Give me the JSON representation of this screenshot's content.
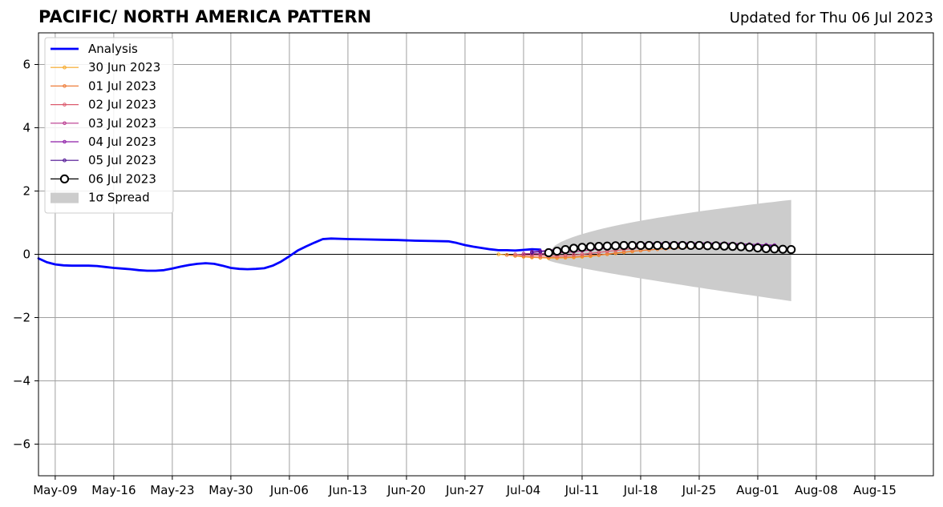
{
  "title": "PACIFIC/ NORTH AMERICA PATTERN",
  "subtitle": "Updated for Thu 06 Jul 2023",
  "chart_data": {
    "type": "line",
    "title": "PACIFIC/ NORTH AMERICA PATTERN",
    "subtitle": "Updated for Thu 06 Jul 2023",
    "xlabel": "",
    "ylabel": "",
    "xlim": [
      "2023-05-07",
      "2023-08-22"
    ],
    "ylim": [
      -7,
      7
    ],
    "x_tick_labels": [
      "May-09",
      "May-16",
      "May-23",
      "May-30",
      "Jun-06",
      "Jun-13",
      "Jun-20",
      "Jun-27",
      "Jul-04",
      "Jul-11",
      "Jul-18",
      "Jul-25",
      "Aug-01",
      "Aug-08",
      "Aug-15"
    ],
    "x_tick_dates": [
      "2023-05-09",
      "2023-05-16",
      "2023-05-23",
      "2023-05-30",
      "2023-06-06",
      "2023-06-13",
      "2023-06-20",
      "2023-06-27",
      "2023-07-04",
      "2023-07-11",
      "2023-07-18",
      "2023-07-25",
      "2023-08-01",
      "2023-08-08",
      "2023-08-15"
    ],
    "y_ticks": [
      6,
      4,
      2,
      0,
      -2,
      -4,
      -6
    ],
    "y_tick_labels": [
      "6",
      "4",
      "2",
      "0",
      "−2",
      "−4",
      "−6"
    ],
    "grid": true,
    "legend_position": "top-left",
    "zero_line": 0,
    "series": [
      {
        "name": "Analysis",
        "color": "#0000ff",
        "style": "line",
        "points": [
          [
            "2023-05-07",
            -0.13
          ],
          [
            "2023-05-08",
            -0.25
          ],
          [
            "2023-05-09",
            -0.32
          ],
          [
            "2023-05-10",
            -0.35
          ],
          [
            "2023-05-11",
            -0.36
          ],
          [
            "2023-05-12",
            -0.36
          ],
          [
            "2023-05-13",
            -0.36
          ],
          [
            "2023-05-14",
            -0.37
          ],
          [
            "2023-05-15",
            -0.4
          ],
          [
            "2023-05-16",
            -0.43
          ],
          [
            "2023-05-17",
            -0.45
          ],
          [
            "2023-05-18",
            -0.47
          ],
          [
            "2023-05-19",
            -0.5
          ],
          [
            "2023-05-20",
            -0.52
          ],
          [
            "2023-05-21",
            -0.52
          ],
          [
            "2023-05-22",
            -0.5
          ],
          [
            "2023-05-23",
            -0.45
          ],
          [
            "2023-05-24",
            -0.39
          ],
          [
            "2023-05-25",
            -0.34
          ],
          [
            "2023-05-26",
            -0.3
          ],
          [
            "2023-05-27",
            -0.28
          ],
          [
            "2023-05-28",
            -0.3
          ],
          [
            "2023-05-29",
            -0.36
          ],
          [
            "2023-05-30",
            -0.43
          ],
          [
            "2023-05-31",
            -0.46
          ],
          [
            "2023-06-01",
            -0.47
          ],
          [
            "2023-06-02",
            -0.46
          ],
          [
            "2023-06-03",
            -0.44
          ],
          [
            "2023-06-04",
            -0.36
          ],
          [
            "2023-06-05",
            -0.23
          ],
          [
            "2023-06-06",
            -0.06
          ],
          [
            "2023-06-07",
            0.12
          ],
          [
            "2023-06-08",
            0.25
          ],
          [
            "2023-06-09",
            0.37
          ],
          [
            "2023-06-10",
            0.48
          ],
          [
            "2023-06-11",
            0.5
          ],
          [
            "2023-06-13",
            0.48
          ],
          [
            "2023-06-15",
            0.47
          ],
          [
            "2023-06-17",
            0.46
          ],
          [
            "2023-06-19",
            0.45
          ],
          [
            "2023-06-21",
            0.43
          ],
          [
            "2023-06-23",
            0.42
          ],
          [
            "2023-06-25",
            0.41
          ],
          [
            "2023-06-26",
            0.36
          ],
          [
            "2023-06-27",
            0.29
          ],
          [
            "2023-06-28",
            0.24
          ],
          [
            "2023-06-29",
            0.2
          ],
          [
            "2023-06-30",
            0.16
          ],
          [
            "2023-07-01",
            0.13
          ],
          [
            "2023-07-02",
            0.13
          ],
          [
            "2023-07-03",
            0.12
          ],
          [
            "2023-07-04",
            0.14
          ],
          [
            "2023-07-05",
            0.16
          ],
          [
            "2023-07-06",
            0.15
          ]
        ]
      },
      {
        "name": "30 Jun 2023",
        "color": "#f5a623",
        "style": "small-marker",
        "start": "2023-07-01",
        "values": [
          0.0,
          -0.02,
          -0.05,
          -0.08,
          -0.1,
          -0.11,
          -0.12,
          -0.12,
          -0.11,
          -0.1,
          -0.08,
          -0.06,
          -0.03,
          0.0,
          0.03,
          0.06,
          0.09,
          0.12,
          0.14,
          0.16,
          0.18,
          0.2,
          0.21,
          0.22,
          0.22,
          0.22,
          0.22,
          0.21,
          0.2,
          0.19
        ]
      },
      {
        "name": "01 Jul 2023",
        "color": "#ee7d3a",
        "style": "small-marker",
        "start": "2023-07-02",
        "values": [
          -0.02,
          -0.04,
          -0.06,
          -0.08,
          -0.1,
          -0.1,
          -0.1,
          -0.09,
          -0.08,
          -0.06,
          -0.04,
          -0.02,
          0.01,
          0.04,
          0.07,
          0.1,
          0.12,
          0.14,
          0.16,
          0.18,
          0.19,
          0.2,
          0.21,
          0.21,
          0.21,
          0.21,
          0.2,
          0.2,
          0.19,
          0.18
        ]
      },
      {
        "name": "02 Jul 2023",
        "color": "#dc5b6e",
        "style": "small-marker",
        "start": "2023-07-03",
        "values": [
          0.0,
          -0.02,
          -0.03,
          -0.04,
          -0.05,
          -0.05,
          -0.04,
          -0.02,
          0.0,
          0.03,
          0.06,
          0.09,
          0.12,
          0.15,
          0.18,
          0.21,
          0.23,
          0.25,
          0.27,
          0.28,
          0.29,
          0.29,
          0.29,
          0.29,
          0.28,
          0.27,
          0.26,
          0.25,
          0.24,
          0.23
        ]
      },
      {
        "name": "03 Jul 2023",
        "color": "#b8378d",
        "style": "small-marker",
        "start": "2023-07-04",
        "values": [
          0.02,
          0.02,
          0.02,
          0.03,
          0.04,
          0.06,
          0.08,
          0.11,
          0.14,
          0.17,
          0.2,
          0.23,
          0.26,
          0.28,
          0.3,
          0.31,
          0.32,
          0.33,
          0.33,
          0.33,
          0.33,
          0.32,
          0.31,
          0.3,
          0.29,
          0.28,
          0.27,
          0.26,
          0.25,
          0.24
        ]
      },
      {
        "name": "04 Jul 2023",
        "color": "#8e1fa8",
        "style": "small-marker",
        "start": "2023-07-05",
        "values": [
          0.08,
          0.1,
          0.13,
          0.16,
          0.19,
          0.22,
          0.25,
          0.27,
          0.29,
          0.31,
          0.32,
          0.33,
          0.34,
          0.35,
          0.35,
          0.36,
          0.36,
          0.36,
          0.36,
          0.36,
          0.36,
          0.36,
          0.35,
          0.35,
          0.34,
          0.33,
          0.32,
          0.31,
          0.3,
          0.29
        ]
      },
      {
        "name": "05 Jul 2023",
        "color": "#4a0c8f",
        "style": "small-marker",
        "start": "2023-07-05",
        "values": [
          0.06,
          0.08,
          0.11,
          0.14,
          0.17,
          0.2,
          0.22,
          0.24,
          0.25,
          0.26,
          0.27,
          0.28,
          0.28,
          0.29,
          0.29,
          0.3,
          0.3,
          0.3,
          0.3,
          0.3,
          0.3,
          0.3,
          0.29,
          0.29,
          0.29,
          0.28,
          0.28,
          0.27,
          0.27,
          0.26
        ]
      },
      {
        "name": "06 Jul 2023",
        "color": "#000000",
        "style": "open-circle",
        "start": "2023-07-07",
        "values": [
          0.05,
          0.1,
          0.15,
          0.19,
          0.22,
          0.24,
          0.25,
          0.26,
          0.27,
          0.28,
          0.28,
          0.28,
          0.28,
          0.28,
          0.28,
          0.28,
          0.28,
          0.28,
          0.28,
          0.27,
          0.27,
          0.26,
          0.25,
          0.24,
          0.22,
          0.2,
          0.18,
          0.17,
          0.16,
          0.15
        ]
      }
    ],
    "spread": {
      "name": "1σ Spread",
      "color": "#cccccc",
      "start": "2023-07-07",
      "end": "2023-08-05",
      "upper_end": 1.72,
      "lower_end": -1.48
    }
  }
}
